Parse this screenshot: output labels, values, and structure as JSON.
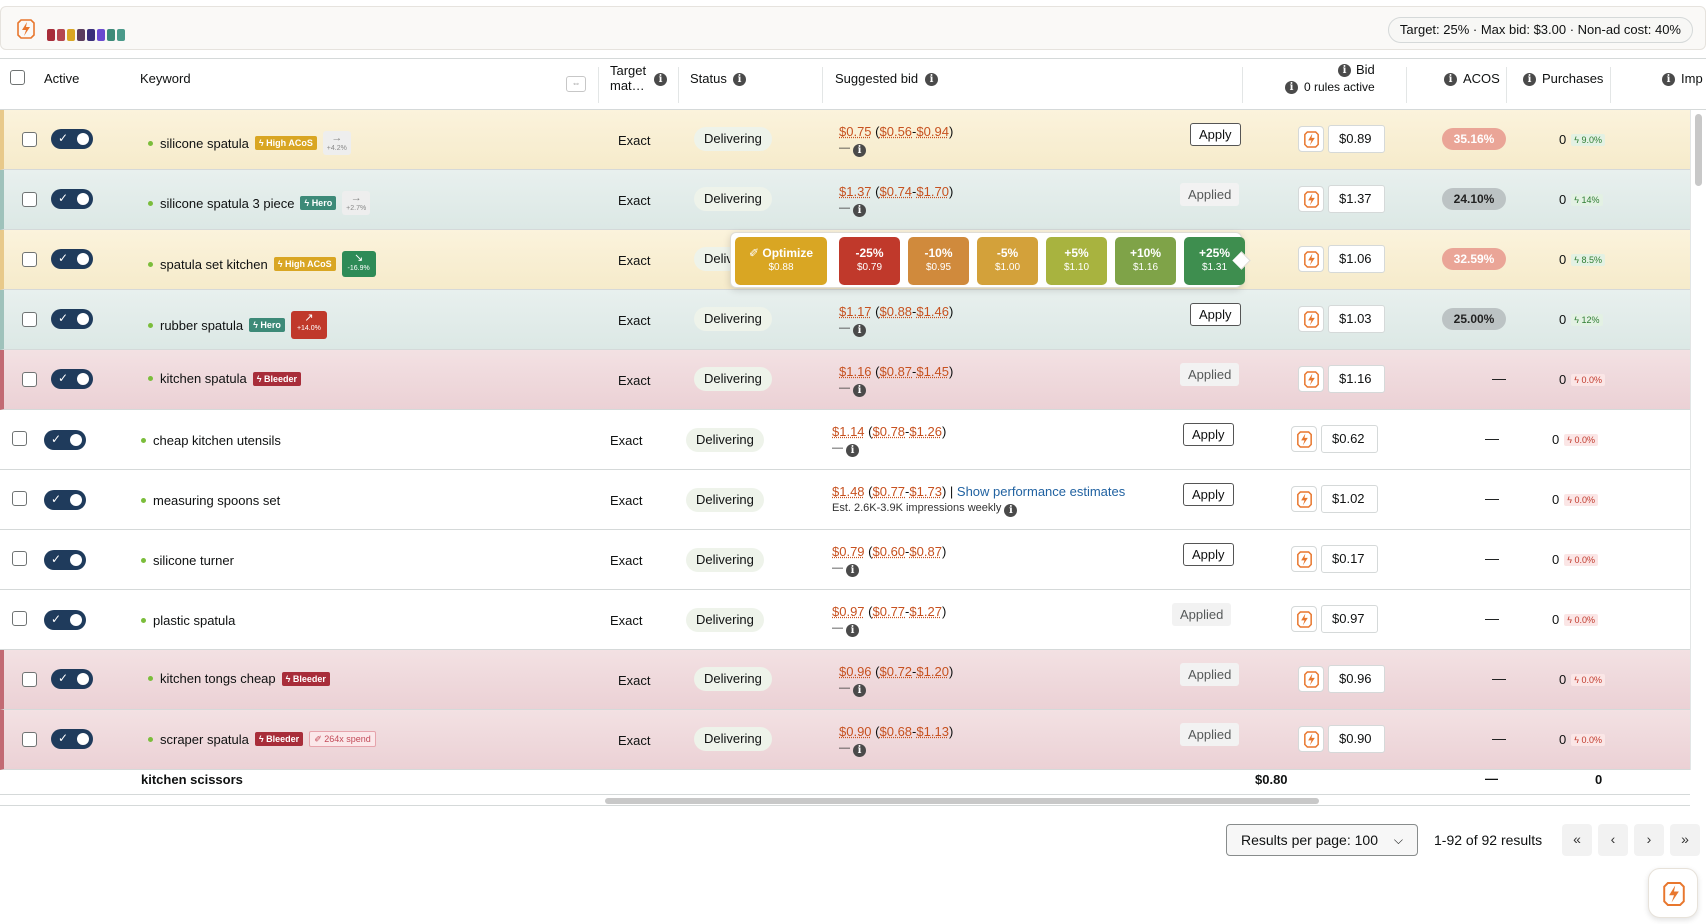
{
  "topbar": {
    "brand_icon": "bolt-logo-icon",
    "swatch_colors": [
      "#a82d3a",
      "#b5464f",
      "#d9a623",
      "#5b3d5e",
      "#3a2f7a",
      "#6a4ad0",
      "#3d8a78",
      "#4a9a8a"
    ],
    "target_summary": "Target: 25% · Max bid: $3.00 · Non-ad cost: 40%"
  },
  "header": {
    "active": "Active",
    "keyword": "Keyword",
    "resize_icon": "⇔",
    "target_match": "Target mat…",
    "status": "Status",
    "suggested_bid": "Suggested bid",
    "bid": "Bid",
    "rules_active": "0 rules active",
    "acos": "ACOS",
    "purchases": "Purchases",
    "impressions": "Imp"
  },
  "rows": [
    {
      "keyword": "silicone spatula",
      "badge": "High ACoS",
      "trend": "+4.2%",
      "match": "Exact",
      "status": "Delivering",
      "sug_main": "$0.75",
      "sug_low": "$0.56",
      "sug_high": "$0.94",
      "sub": "—",
      "action": "Apply",
      "bid": "$0.89",
      "acos": "35.16%",
      "purchases": "0",
      "pct": "9.0%"
    },
    {
      "keyword": "silicone spatula 3 piece",
      "badge": "Hero",
      "trend": "+2.7%",
      "match": "Exact",
      "status": "Delivering",
      "sug_main": "$1.37",
      "sug_low": "$0.74",
      "sug_high": "$1.70",
      "sub": "—",
      "action": "Applied",
      "bid": "$1.37",
      "acos": "24.10%",
      "purchases": "0",
      "pct": "14%"
    },
    {
      "keyword": "spatula set kitchen",
      "badge": "High ACoS",
      "trend": "-16.9%",
      "match": "Exact",
      "status": "Delivering",
      "bid": "$1.06",
      "acos": "32.59%",
      "purchases": "0",
      "pct": "8.5%"
    },
    {
      "keyword": "rubber spatula",
      "badge": "Hero",
      "trend": "+14.0%",
      "match": "Exact",
      "status": "Delivering",
      "sug_main": "$1.17",
      "sug_low": "$0.88",
      "sug_high": "$1.46",
      "sub": "—",
      "action": "Apply",
      "bid": "$1.03",
      "acos": "25.00%",
      "purchases": "0",
      "pct": "12%"
    },
    {
      "keyword": "kitchen spatula",
      "badge": "Bleeder",
      "match": "Exact",
      "status": "Delivering",
      "sug_main": "$1.16",
      "sug_low": "$0.87",
      "sug_high": "$1.45",
      "sub": "—",
      "action": "Applied",
      "bid": "$1.16",
      "acos": "—",
      "purchases": "0",
      "pct": "0.0%"
    },
    {
      "keyword": "cheap kitchen utensils",
      "match": "Exact",
      "status": "Delivering",
      "sug_main": "$1.14",
      "sug_low": "$0.78",
      "sug_high": "$1.26",
      "sub": "—",
      "action": "Apply",
      "bid": "$0.62",
      "acos": "—",
      "purchases": "0",
      "pct": "0.0%"
    },
    {
      "keyword": "measuring spoons set",
      "match": "Exact",
      "status": "Delivering",
      "sug_main": "$1.48",
      "sug_low": "$0.77",
      "sug_high": "$1.73",
      "sep": "|",
      "link": "Show performance estimates",
      "sub": "Est. 2.6K-3.9K impressions weekly",
      "action": "Apply",
      "bid": "$1.02",
      "acos": "—",
      "purchases": "0",
      "pct": "0.0%"
    },
    {
      "keyword": "silicone turner",
      "match": "Exact",
      "status": "Delivering",
      "sug_main": "$0.79",
      "sug_low": "$0.60",
      "sug_high": "$0.87",
      "sub": "—",
      "action": "Apply",
      "bid": "$0.17",
      "acos": "—",
      "purchases": "0",
      "pct": "0.0%"
    },
    {
      "keyword": "plastic spatula",
      "match": "Exact",
      "status": "Delivering",
      "sug_main": "$0.97",
      "sug_low": "$0.77",
      "sug_high": "$1.27",
      "sub": "—",
      "action": "Applied",
      "bid": "$0.97",
      "acos": "—",
      "purchases": "0",
      "pct": "0.0%"
    },
    {
      "keyword": "kitchen tongs cheap",
      "badge": "Bleeder",
      "match": "Exact",
      "status": "Delivering",
      "sug_main": "$0.96",
      "sug_low": "$0.72",
      "sug_high": "$1.20",
      "sub": "—",
      "action": "Applied",
      "bid": "$0.96",
      "acos": "—",
      "purchases": "0",
      "pct": "0.0%"
    },
    {
      "keyword": "scraper spatula",
      "badge": "Bleeder",
      "badge2": "264x spend",
      "match": "Exact",
      "status": "Delivering",
      "sug_main": "$0.90",
      "sug_low": "$0.68",
      "sug_high": "$1.13",
      "sub": "—",
      "action": "Applied",
      "bid": "$0.90",
      "acos": "—",
      "purchases": "0",
      "pct": "0.0%"
    }
  ],
  "popover": {
    "optimize_label": "Optimize",
    "optimize_value": "$0.88",
    "options": [
      {
        "label": "-25%",
        "value": "$0.79"
      },
      {
        "label": "-10%",
        "value": "$0.95"
      },
      {
        "label": "-5%",
        "value": "$1.00"
      },
      {
        "label": "+5%",
        "value": "$1.10"
      },
      {
        "label": "+10%",
        "value": "$1.16"
      },
      {
        "label": "+25%",
        "value": "$1.31"
      }
    ]
  },
  "footer_row": {
    "keyword": "kitchen scissors",
    "bid": "$0.80",
    "acos": "—",
    "purchases": "0"
  },
  "pagination": {
    "per_page": "Results per page: 100",
    "results": "1-92 of 92 results",
    "first": "«",
    "prev": "‹",
    "next": "›",
    "last": "»"
  },
  "colors": {
    "accent": "#e8772e",
    "link": "#2162a1",
    "price": "#c7511f",
    "toggle": "#1f3b5c"
  }
}
